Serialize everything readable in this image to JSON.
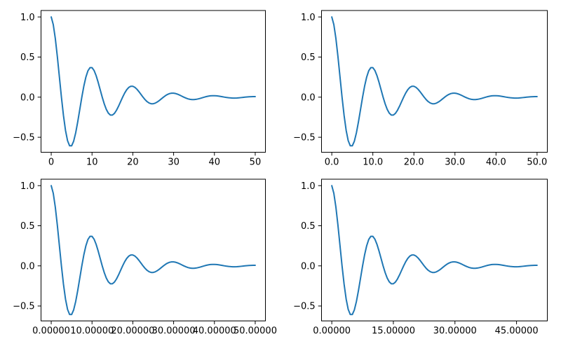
{
  "figure": {
    "background_color": "#ffffff",
    "title": ""
  },
  "style": {
    "line_color": "#1f77b4",
    "line_width": 2,
    "spine_color": "#000000",
    "tick_color": "#000000",
    "tick_length": 4.8,
    "tick_label_color": "#000000"
  },
  "chart_data": {
    "type": "line",
    "title": "",
    "xlabel": "",
    "ylabel": "",
    "grid": false,
    "legend": null,
    "description": "Same damped cosine curve y = exp(-x/10)*cos(2*pi*x/10) drawn in four subplots that differ only in x-axis tick label formatting",
    "x": [
      0,
      0.5,
      1,
      1.5,
      2,
      2.5,
      3,
      3.5,
      4,
      4.5,
      5,
      5.5,
      6,
      6.5,
      7,
      7.5,
      8,
      8.5,
      9,
      9.5,
      10,
      10.5,
      11,
      11.5,
      12,
      12.5,
      13,
      13.5,
      14,
      14.5,
      15,
      15.5,
      16,
      16.5,
      17,
      17.5,
      18,
      18.5,
      19,
      19.5,
      20,
      20.5,
      21,
      21.5,
      22,
      22.5,
      23,
      23.5,
      24,
      24.5,
      25,
      25.5,
      26,
      26.5,
      27,
      27.5,
      28,
      28.5,
      29,
      29.5,
      30,
      30.5,
      31,
      31.5,
      32,
      32.5,
      33,
      33.5,
      34,
      34.5,
      35,
      35.5,
      36,
      36.5,
      37,
      37.5,
      38,
      38.5,
      39,
      39.5,
      40,
      40.5,
      41,
      41.5,
      42,
      42.5,
      43,
      43.5,
      44,
      44.5,
      45,
      45.5,
      46,
      46.5,
      47,
      47.5,
      48,
      48.5,
      49,
      49.5,
      50
    ],
    "y": [
      1.0,
      0.9047,
      0.7321,
      0.5059,
      0.253,
      0.0,
      -0.2289,
      -0.4142,
      -0.5423,
      -0.6064,
      -0.6065,
      -0.5487,
      -0.444,
      -0.3069,
      -0.1535,
      0.0,
      0.1389,
      0.2512,
      0.3289,
      0.3678,
      0.3679,
      0.3328,
      0.2693,
      0.1861,
      0.0931,
      0.0,
      -0.0842,
      -0.1524,
      -0.1995,
      -0.2231,
      -0.2231,
      -0.2019,
      -0.1633,
      -0.1129,
      -0.0565,
      0.0,
      0.0511,
      0.0924,
      0.121,
      0.1353,
      0.1353,
      0.1224,
      0.0991,
      0.0685,
      0.0342,
      0.0,
      -0.031,
      -0.0561,
      -0.0734,
      -0.0821,
      -0.0821,
      -0.0743,
      -0.0601,
      -0.0415,
      -0.0208,
      0.0,
      0.0188,
      0.034,
      0.0445,
      0.0498,
      0.0498,
      0.045,
      0.0364,
      0.0252,
      0.0126,
      0.0,
      -0.0114,
      -0.0206,
      -0.027,
      -0.0302,
      -0.0302,
      -0.0273,
      -0.0221,
      -0.0153,
      -0.0076,
      0.0,
      0.0069,
      0.0125,
      0.0164,
      0.0183,
      0.0183,
      0.0166,
      0.0134,
      0.0093,
      0.0046,
      0.0,
      -0.0042,
      -0.0076,
      -0.0099,
      -0.0111,
      -0.0111,
      -0.0101,
      -0.0081,
      -0.0056,
      -0.0028,
      0.0,
      0.0025,
      0.0046,
      0.006,
      0.0067,
      0.0067
    ],
    "subplots": [
      {
        "id": "top-left",
        "xlim": [
          -2.5,
          52.5
        ],
        "ylim": [
          -0.6868,
          1.0803
        ],
        "xticks": [
          0,
          10,
          20,
          30,
          40,
          50
        ],
        "xtick_labels": [
          "0",
          "10",
          "20",
          "30",
          "40",
          "50"
        ],
        "yticks": [
          1.0,
          0.5,
          0.0,
          -0.5
        ],
        "ytick_labels": [
          "1.0",
          "0.5",
          "0.0",
          "−0.5"
        ]
      },
      {
        "id": "top-right",
        "xlim": [
          -2.5,
          52.5
        ],
        "ylim": [
          -0.6868,
          1.0803
        ],
        "xticks": [
          0,
          10,
          20,
          30,
          40,
          50
        ],
        "xtick_labels": [
          "0.0",
          "10.0",
          "20.0",
          "30.0",
          "40.0",
          "50.0"
        ],
        "yticks": [
          1.0,
          0.5,
          0.0,
          -0.5
        ],
        "ytick_labels": [
          "1.0",
          "0.5",
          "0.0",
          "−0.5"
        ]
      },
      {
        "id": "bottom-left",
        "xlim": [
          -2.5,
          52.5
        ],
        "ylim": [
          -0.6868,
          1.0803
        ],
        "xticks": [
          0,
          10,
          20,
          30,
          40,
          50
        ],
        "xtick_labels": [
          "0.00000",
          "10.00000",
          "20.00000",
          "30.00000",
          "40.00000",
          "50.00000"
        ],
        "yticks": [
          1.0,
          0.5,
          0.0,
          -0.5
        ],
        "ytick_labels": [
          "1.0",
          "0.5",
          "0.0",
          "−0.5"
        ]
      },
      {
        "id": "bottom-right",
        "xlim": [
          -2.5,
          52.5
        ],
        "ylim": [
          -0.6868,
          1.0803
        ],
        "xticks": [
          0,
          15,
          30,
          45
        ],
        "xtick_labels": [
          "0.00000",
          "15.00000",
          "30.00000",
          "45.00000"
        ],
        "yticks": [
          1.0,
          0.5,
          0.0,
          -0.5
        ],
        "ytick_labels": [
          "1.0",
          "0.5",
          "0.0",
          "−0.5"
        ]
      }
    ]
  }
}
